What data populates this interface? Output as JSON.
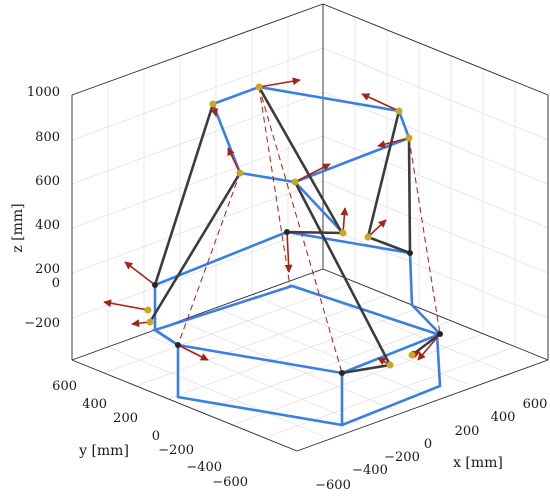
{
  "axes": {
    "x": {
      "label": "x [mm]",
      "ticks": [
        "−600",
        "−400",
        "−200",
        "0",
        "200",
        "400",
        "600"
      ]
    },
    "y": {
      "label": "y [mm]",
      "ticks": [
        "600",
        "400",
        "200",
        "0",
        "−200",
        "−400",
        "−600"
      ]
    },
    "z": {
      "label": "z [mm]",
      "ticks": [
        "1000",
        "800",
        "600",
        "400",
        "200",
        "0",
        "−200"
      ]
    }
  },
  "colors": {
    "frame": "#3a7ee6",
    "legs": "#3c3c3c",
    "joints_top": "#c8a81e",
    "joints_bottom": "#262626",
    "arrows": "#a42414"
  }
}
